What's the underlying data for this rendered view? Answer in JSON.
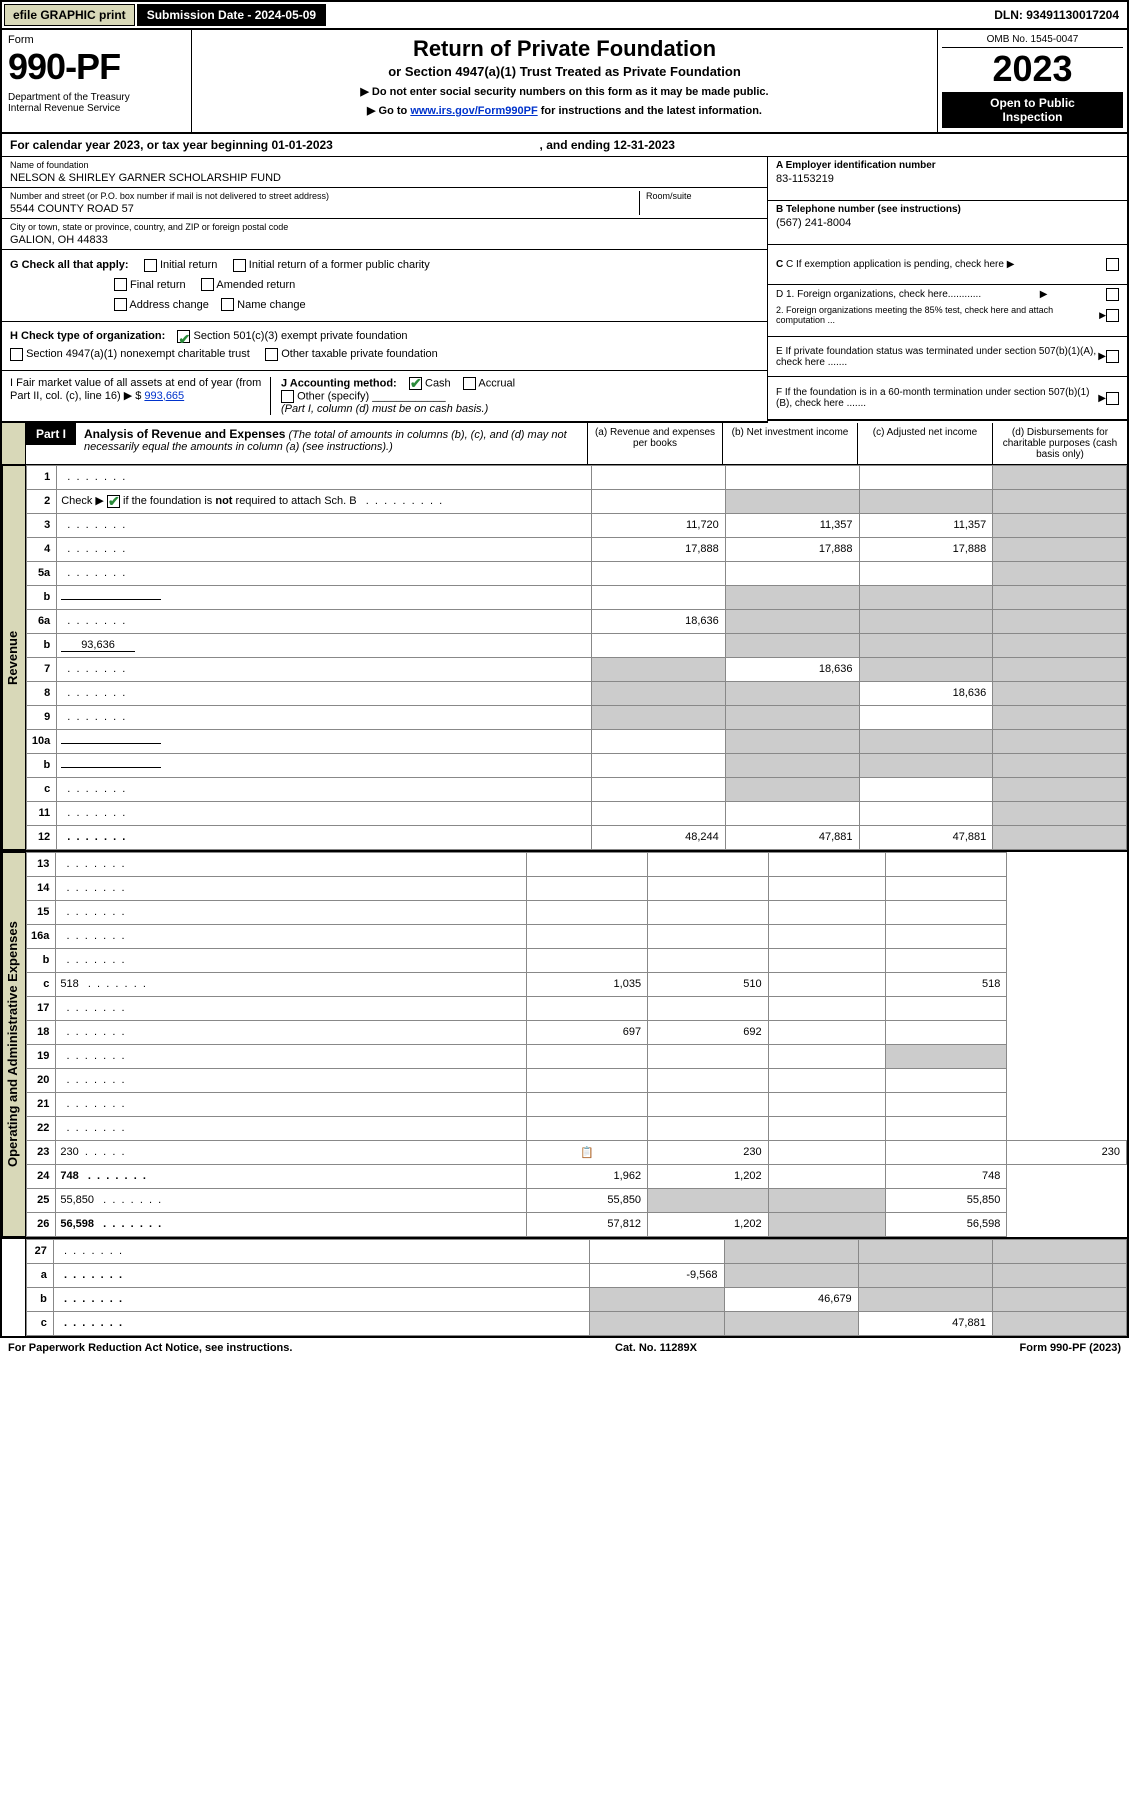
{
  "topbar": {
    "efile": "efile GRAPHIC print",
    "subdate_label": "Submission Date - 2024-05-09",
    "dln": "DLN: 93491130017204"
  },
  "header": {
    "form_label": "Form",
    "form_num": "990-PF",
    "dept": "Department of the Treasury\nInternal Revenue Service",
    "title": "Return of Private Foundation",
    "subtitle": "or Section 4947(a)(1) Trust Treated as Private Foundation",
    "instr1": "▶ Do not enter social security numbers on this form as it may be made public.",
    "instr2_pre": "▶ Go to ",
    "instr2_link": "www.irs.gov/Form990PF",
    "instr2_post": " for instructions and the latest information.",
    "omb": "OMB No. 1545-0047",
    "year": "2023",
    "open": "Open to Public\nInspection"
  },
  "calyear": {
    "pre": "For calendar year 2023, or tax year beginning ",
    "begin": "01-01-2023",
    "mid": " , and ending ",
    "end": "12-31-2023"
  },
  "info": {
    "name_label": "Name of foundation",
    "name": "NELSON & SHIRLEY GARNER SCHOLARSHIP FUND",
    "addr_label": "Number and street (or P.O. box number if mail is not delivered to street address)",
    "addr": "5544 COUNTY ROAD 57",
    "room_label": "Room/suite",
    "city_label": "City or town, state or province, country, and ZIP or foreign postal code",
    "city": "GALION, OH  44833",
    "ein_label": "A Employer identification number",
    "ein": "83-1153219",
    "tel_label": "B Telephone number (see instructions)",
    "tel": "(567) 241-8004",
    "c_label": "C If exemption application is pending, check here",
    "d1": "D 1. Foreign organizations, check here............",
    "d2": "2. Foreign organizations meeting the 85% test, check here and attach computation ...",
    "e": "E  If private foundation status was terminated under section 507(b)(1)(A), check here .......",
    "f": "F  If the foundation is in a 60-month termination under section 507(b)(1)(B), check here .......",
    "g_label": "G Check all that apply:",
    "g_opts": [
      "Initial return",
      "Initial return of a former public charity",
      "Final return",
      "Amended return",
      "Address change",
      "Name change"
    ],
    "h_label": "H Check type of organization:",
    "h1": "Section 501(c)(3) exempt private foundation",
    "h2": "Section 4947(a)(1) nonexempt charitable trust",
    "h3": "Other taxable private foundation",
    "i_label": "I Fair market value of all assets at end of year (from Part II, col. (c), line 16) ▶ $",
    "i_val": "993,665",
    "j_label": "J Accounting method:",
    "j_cash": "Cash",
    "j_accr": "Accrual",
    "j_other": "Other (specify)",
    "j_note": "(Part I, column (d) must be on cash basis.)"
  },
  "part1": {
    "tag": "Part I",
    "title": "Analysis of Revenue and Expenses",
    "note": " (The total of amounts in columns (b), (c), and (d) may not necessarily equal the amounts in column (a) (see instructions).)",
    "col_a": "(a) Revenue and expenses per books",
    "col_b": "(b) Net investment income",
    "col_c": "(c) Adjusted net income",
    "col_d": "(d) Disbursements for charitable purposes (cash basis only)"
  },
  "side_labels": {
    "rev": "Revenue",
    "exp": "Operating and Administrative Expenses"
  },
  "rows": [
    {
      "n": "1",
      "d": "",
      "a": "",
      "b": "",
      "c": "",
      "dshade": true
    },
    {
      "n": "2",
      "d": "",
      "a": "",
      "b": "",
      "c": "",
      "bshade": true,
      "cshade": true,
      "dshade": true,
      "check": true
    },
    {
      "n": "3",
      "d": "",
      "a": "11,720",
      "b": "11,357",
      "c": "11,357",
      "dshade": true
    },
    {
      "n": "4",
      "d": "",
      "a": "17,888",
      "b": "17,888",
      "c": "17,888",
      "dshade": true
    },
    {
      "n": "5a",
      "d": "",
      "a": "",
      "b": "",
      "c": "",
      "dshade": true
    },
    {
      "n": "b",
      "d": "",
      "a": "",
      "b": "",
      "c": "",
      "bshade": true,
      "cshade": true,
      "dshade": true,
      "inline": true
    },
    {
      "n": "6a",
      "d": "",
      "a": "18,636",
      "b": "",
      "c": "",
      "bshade": true,
      "cshade": true,
      "dshade": true
    },
    {
      "n": "b",
      "d": "",
      "a": "",
      "b": "",
      "c": "",
      "bshade": true,
      "cshade": true,
      "dshade": true,
      "inline": true,
      "inlineval": "93,636"
    },
    {
      "n": "7",
      "d": "",
      "a": "",
      "b": "18,636",
      "c": "",
      "ashade": true,
      "cshade": true,
      "dshade": true
    },
    {
      "n": "8",
      "d": "",
      "a": "",
      "b": "",
      "c": "18,636",
      "ashade": true,
      "bshade": true,
      "dshade": true
    },
    {
      "n": "9",
      "d": "",
      "a": "",
      "b": "",
      "c": "",
      "ashade": true,
      "bshade": true,
      "dshade": true
    },
    {
      "n": "10a",
      "d": "",
      "a": "",
      "b": "",
      "c": "",
      "bshade": true,
      "cshade": true,
      "dshade": true,
      "inline": true
    },
    {
      "n": "b",
      "d": "",
      "a": "",
      "b": "",
      "c": "",
      "bshade": true,
      "cshade": true,
      "dshade": true,
      "inline": true
    },
    {
      "n": "c",
      "d": "",
      "a": "",
      "b": "",
      "c": "",
      "bshade": true,
      "dshade": true
    },
    {
      "n": "11",
      "d": "",
      "a": "",
      "b": "",
      "c": "",
      "dshade": true
    },
    {
      "n": "12",
      "d": "",
      "a": "48,244",
      "b": "47,881",
      "c": "47,881",
      "dshade": true,
      "bold": true
    }
  ],
  "exp_rows": [
    {
      "n": "13",
      "d": "",
      "a": "",
      "b": "",
      "c": ""
    },
    {
      "n": "14",
      "d": "",
      "a": "",
      "b": "",
      "c": ""
    },
    {
      "n": "15",
      "d": "",
      "a": "",
      "b": "",
      "c": ""
    },
    {
      "n": "16a",
      "d": "",
      "a": "",
      "b": "",
      "c": ""
    },
    {
      "n": "b",
      "d": "",
      "a": "",
      "b": "",
      "c": ""
    },
    {
      "n": "c",
      "d": "518",
      "a": "1,035",
      "b": "510",
      "c": ""
    },
    {
      "n": "17",
      "d": "",
      "a": "",
      "b": "",
      "c": ""
    },
    {
      "n": "18",
      "d": "",
      "a": "697",
      "b": "692",
      "c": ""
    },
    {
      "n": "19",
      "d": "",
      "a": "",
      "b": "",
      "c": "",
      "dshade": true
    },
    {
      "n": "20",
      "d": "",
      "a": "",
      "b": "",
      "c": ""
    },
    {
      "n": "21",
      "d": "",
      "a": "",
      "b": "",
      "c": ""
    },
    {
      "n": "22",
      "d": "",
      "a": "",
      "b": "",
      "c": ""
    },
    {
      "n": "23",
      "d": "230",
      "a": "230",
      "b": "",
      "c": "",
      "icon": true
    },
    {
      "n": "24",
      "d": "748",
      "a": "1,962",
      "b": "1,202",
      "c": "",
      "bold": true
    },
    {
      "n": "25",
      "d": "55,850",
      "a": "55,850",
      "b": "",
      "c": "",
      "bshade": true,
      "cshade": true
    },
    {
      "n": "26",
      "d": "56,598",
      "a": "57,812",
      "b": "1,202",
      "c": "",
      "bold": true,
      "cshade": true
    }
  ],
  "line27": [
    {
      "n": "27",
      "d": "",
      "a": "",
      "b": "",
      "c": "",
      "bshade": true,
      "cshade": true,
      "dshade": true
    },
    {
      "n": "a",
      "d": "",
      "a": "-9,568",
      "b": "",
      "c": "",
      "bold": true,
      "bshade": true,
      "cshade": true,
      "dshade": true
    },
    {
      "n": "b",
      "d": "",
      "a": "",
      "b": "46,679",
      "c": "",
      "bold": true,
      "ashade": true,
      "cshade": true,
      "dshade": true
    },
    {
      "n": "c",
      "d": "",
      "a": "",
      "b": "",
      "c": "47,881",
      "bold": true,
      "ashade": true,
      "bshade": true,
      "dshade": true
    }
  ],
  "footer": {
    "left": "For Paperwork Reduction Act Notice, see instructions.",
    "mid": "Cat. No. 11289X",
    "right": "Form 990-PF (2023)"
  },
  "colors": {
    "tan": "#d8d8b8",
    "green": "#2a8a3a",
    "link": "#0033cc",
    "shade": "#cccccc"
  }
}
